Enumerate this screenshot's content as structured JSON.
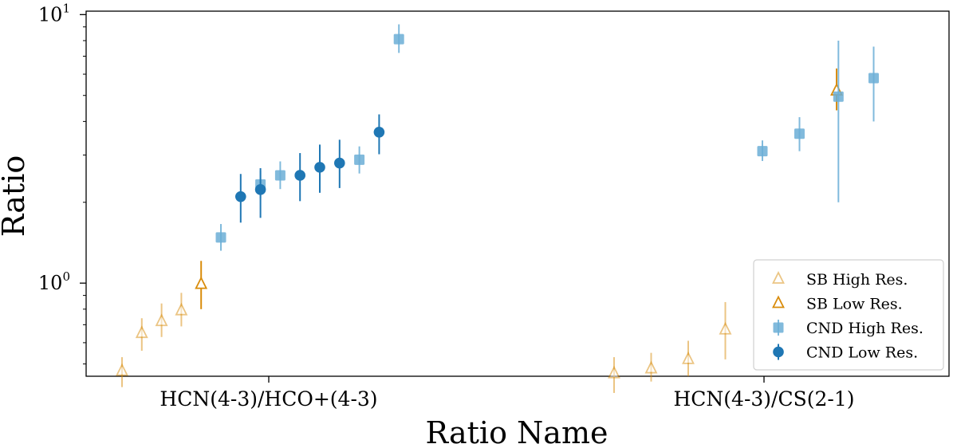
{
  "chart_data": {
    "type": "scatter",
    "xlabel": "Ratio Name",
    "ylabel": "Ratio",
    "y_scale": "log",
    "ylim": [
      0.45,
      10.3
    ],
    "grid": false,
    "legend_placement": "lower-right",
    "categories": [
      "HCN(4-3)/HCO+(4-3)",
      "HCN(4-3)/CS(2-1)"
    ],
    "y_ticks": [
      {
        "base": "10",
        "exp": "0",
        "value": 1
      },
      {
        "base": "10",
        "exp": "1",
        "value": 10
      }
    ],
    "colors": {
      "sb": "#d98c0b",
      "cnd_high": "#6baed6",
      "cnd_low": "#1f77b4",
      "axis": "#000000"
    },
    "series": [
      {
        "name": "SB High Res.",
        "marker": "triangle-open",
        "color_key": "sb",
        "alpha": 0.5,
        "points": [
          {
            "group": 0,
            "slot": 0,
            "y": 0.47,
            "lo": 0.41,
            "hi": 0.53
          },
          {
            "group": 0,
            "slot": 1,
            "y": 0.65,
            "lo": 0.56,
            "hi": 0.74
          },
          {
            "group": 0,
            "slot": 2,
            "y": 0.72,
            "lo": 0.63,
            "hi": 0.84
          },
          {
            "group": 0,
            "slot": 3,
            "y": 0.79,
            "lo": 0.69,
            "hi": 0.92
          },
          {
            "group": 1,
            "slot": 0,
            "y": 0.46,
            "lo": 0.39,
            "hi": 0.53
          },
          {
            "group": 1,
            "slot": 1,
            "y": 0.48,
            "lo": 0.43,
            "hi": 0.55
          },
          {
            "group": 1,
            "slot": 2,
            "y": 0.52,
            "lo": 0.45,
            "hi": 0.61
          },
          {
            "group": 1,
            "slot": 3,
            "y": 0.67,
            "lo": 0.52,
            "hi": 0.85
          }
        ]
      },
      {
        "name": "SB Low Res.",
        "marker": "triangle-open",
        "color_key": "sb",
        "alpha": 1,
        "points": [
          {
            "group": 0,
            "slot": 4,
            "y": 0.99,
            "lo": 0.8,
            "hi": 1.21
          },
          {
            "group": 1,
            "slot": 6,
            "y": 5.2,
            "lo": 4.4,
            "hi": 6.3
          }
        ]
      },
      {
        "name": "CND High Res.",
        "marker": "square",
        "color_key": "cnd_high",
        "alpha": 0.85,
        "points": [
          {
            "group": 0,
            "slot": 5,
            "y": 1.48,
            "lo": 1.32,
            "hi": 1.66
          },
          {
            "group": 0,
            "slot": 7,
            "y": 2.33,
            "lo": 2.07,
            "hi": 2.62
          },
          {
            "group": 0,
            "slot": 8,
            "y": 2.52,
            "lo": 2.24,
            "hi": 2.84
          },
          {
            "group": 0,
            "slot": 12,
            "y": 2.88,
            "lo": 2.56,
            "hi": 3.23
          },
          {
            "group": 0,
            "slot": 14,
            "y": 8.1,
            "lo": 7.2,
            "hi": 9.2
          },
          {
            "group": 1,
            "slot": 4,
            "y": 3.1,
            "lo": 2.85,
            "hi": 3.4
          },
          {
            "group": 1,
            "slot": 5,
            "y": 3.6,
            "lo": 3.1,
            "hi": 4.15
          },
          {
            "group": 1,
            "slot": 7,
            "y": 5.8,
            "lo": 4.0,
            "hi": 7.6
          }
        ]
      },
      {
        "name": "CND Low Res.",
        "marker": "circle",
        "color_key": "cnd_low",
        "alpha": 1,
        "points": [
          {
            "group": 0,
            "slot": 6,
            "y": 2.1,
            "lo": 1.68,
            "hi": 2.55
          },
          {
            "group": 0,
            "slot": 7,
            "y": 2.23,
            "lo": 1.75,
            "hi": 2.68
          },
          {
            "group": 0,
            "slot": 9,
            "y": 2.52,
            "lo": 2.02,
            "hi": 3.05
          },
          {
            "group": 0,
            "slot": 10,
            "y": 2.7,
            "lo": 2.17,
            "hi": 3.28
          },
          {
            "group": 0,
            "slot": 11,
            "y": 2.8,
            "lo": 2.26,
            "hi": 3.42
          },
          {
            "group": 0,
            "slot": 13,
            "y": 3.65,
            "lo": 3.02,
            "hi": 4.25
          }
        ]
      },
      {
        "name": "CND High Res. (wide)",
        "marker": "square",
        "color_key": "cnd_high",
        "alpha": 0.85,
        "legend": false,
        "points": [
          {
            "group": 1,
            "slot": 6.05,
            "y": 4.95,
            "lo": 2.0,
            "hi": 8.0
          }
        ]
      }
    ]
  }
}
